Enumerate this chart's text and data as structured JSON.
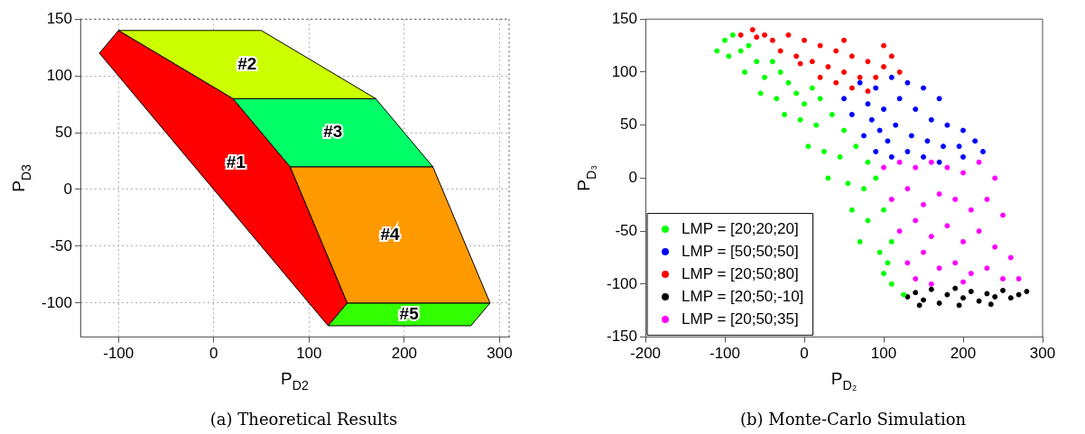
{
  "chart_data": [
    {
      "type": "area",
      "title": "(a) Theoretical Results",
      "xlabel": "P$_{D2}$",
      "ylabel": "P$_{D3}$",
      "xlim": [
        -140,
        310
      ],
      "ylim": [
        -130,
        150
      ],
      "xticks": [
        -100,
        0,
        100,
        200,
        300
      ],
      "yticks": [
        -100,
        -50,
        0,
        50,
        100,
        150
      ],
      "grid": true,
      "legend": false,
      "series": [
        {
          "name": "#1",
          "color": "#ff0000",
          "x": [
            -120,
            -100,
            20,
            80,
            140,
            120,
            -120
          ],
          "values": [
            120,
            140,
            80,
            20,
            -100,
            -120,
            120
          ]
        },
        {
          "name": "#2",
          "color": "#ccff00",
          "x": [
            -100,
            50,
            170,
            20,
            -100
          ],
          "values": [
            140,
            140,
            80,
            80,
            140
          ]
        },
        {
          "name": "#3",
          "color": "#00ff66",
          "x": [
            20,
            170,
            230,
            80,
            20
          ],
          "values": [
            80,
            80,
            20,
            20,
            80
          ]
        },
        {
          "name": "#4",
          "color": "#ff9900",
          "x": [
            80,
            230,
            290,
            140,
            80
          ],
          "values": [
            20,
            20,
            -100,
            -100,
            20
          ]
        },
        {
          "name": "#5",
          "color": "#33ff00",
          "x": [
            140,
            290,
            270,
            120,
            140
          ],
          "values": [
            -100,
            -100,
            -120,
            -120,
            -100
          ]
        }
      ]
    },
    {
      "type": "scatter",
      "title": "(b) Monte-Carlo Simulation",
      "xlabel": "P$_{D₂}$",
      "ylabel": "P$_{D₃}$",
      "xlim": [
        -200,
        300
      ],
      "ylim": [
        -150,
        150
      ],
      "xticks": [
        -200,
        -100,
        0,
        100,
        200,
        300
      ],
      "yticks": [
        -150,
        -100,
        -50,
        0,
        50,
        100,
        150
      ],
      "grid": false,
      "legend": "bottom left",
      "marker": "circle",
      "series": [
        {
          "name": "LMP = [20;20;20]",
          "color": "#00ff00",
          "x": [
            -110,
            -100,
            -90,
            -95,
            -80,
            -70,
            -60,
            -75,
            -50,
            -40,
            -30,
            -20,
            -55,
            -35,
            -10,
            0,
            10,
            20,
            -25,
            -5,
            15,
            35,
            50,
            5,
            25,
            45,
            65,
            80,
            30,
            55,
            75,
            90,
            60,
            80,
            100,
            70,
            95,
            110,
            100,
            110,
            125,
            105
          ],
          "values": [
            120,
            130,
            135,
            115,
            120,
            125,
            110,
            100,
            95,
            110,
            100,
            90,
            80,
            75,
            80,
            70,
            85,
            75,
            60,
            55,
            50,
            60,
            45,
            30,
            25,
            20,
            30,
            15,
            0,
            -5,
            -10,
            0,
            -30,
            -40,
            -30,
            -60,
            -70,
            -60,
            -90,
            -100,
            -110,
            -80
          ]
        },
        {
          "name": "LMP = [50;50;50]",
          "color": "#0000ff",
          "x": [
            50,
            70,
            90,
            110,
            130,
            150,
            170,
            60,
            80,
            100,
            120,
            140,
            160,
            180,
            200,
            75,
            95,
            115,
            135,
            155,
            175,
            195,
            215,
            225,
            90,
            110,
            130,
            150,
            170,
            200,
            85,
            105
          ],
          "values": [
            75,
            90,
            85,
            95,
            90,
            85,
            75,
            60,
            70,
            65,
            75,
            65,
            55,
            50,
            45,
            40,
            45,
            50,
            40,
            35,
            30,
            30,
            35,
            25,
            25,
            20,
            25,
            20,
            15,
            20,
            55,
            35
          ]
        },
        {
          "name": "LMP = [20;50;80]",
          "color": "#ff0000",
          "x": [
            -80,
            -65,
            -50,
            -60,
            -40,
            -20,
            0,
            20,
            40,
            60,
            80,
            100,
            120,
            -30,
            -10,
            10,
            30,
            50,
            70,
            90,
            -5,
            20,
            40,
            60,
            80,
            100,
            50,
            110
          ],
          "values": [
            135,
            140,
            135,
            133,
            130,
            135,
            130,
            125,
            120,
            115,
            110,
            105,
            100,
            120,
            115,
            110,
            105,
            100,
            95,
            95,
            108,
            95,
            90,
            85,
            82,
            125,
            130,
            115
          ]
        },
        {
          "name": "LMP = [20;50;-10]",
          "color": "#000000",
          "x": [
            130,
            140,
            150,
            160,
            170,
            180,
            190,
            200,
            210,
            220,
            230,
            240,
            250,
            260,
            270,
            280,
            145,
            195,
            235
          ],
          "values": [
            -112,
            -108,
            -115,
            -105,
            -118,
            -110,
            -104,
            -113,
            -107,
            -116,
            -109,
            -112,
            -106,
            -113,
            -110,
            -107,
            -120,
            -120,
            -119
          ]
        },
        {
          "name": "LMP = [20;50;35]",
          "color": "#ff00ff",
          "x": [
            100,
            120,
            140,
            160,
            180,
            200,
            220,
            240,
            110,
            130,
            150,
            170,
            190,
            210,
            230,
            250,
            120,
            140,
            160,
            180,
            200,
            220,
            240,
            260,
            130,
            150,
            170,
            190,
            210,
            230,
            250,
            270,
            140,
            160,
            200
          ],
          "values": [
            10,
            15,
            10,
            15,
            10,
            5,
            15,
            0,
            -20,
            -10,
            -25,
            -15,
            -20,
            -30,
            -20,
            -35,
            -50,
            -40,
            -55,
            -45,
            -60,
            -50,
            -65,
            -75,
            -80,
            -70,
            -85,
            -80,
            -90,
            -85,
            -95,
            -95,
            -95,
            -100,
            -98
          ]
        }
      ]
    }
  ]
}
